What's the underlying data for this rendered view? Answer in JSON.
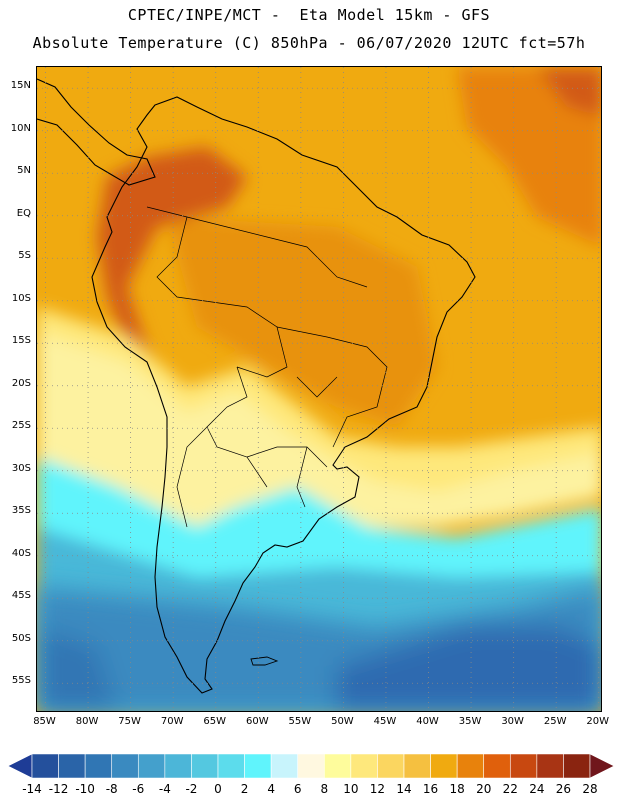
{
  "header": {
    "line1": "CPTEC/INPE/MCT -  Eta Model 15km - GFS",
    "line2": "Absolute Temperature (C) 850hPa - 06/07/2020 12UTC fct=57h"
  },
  "map": {
    "region": "South America",
    "lon_range": [
      -86,
      -19.5
    ],
    "lat_range": [
      17.5,
      -58.5
    ],
    "lat_labels": [
      {
        "lat": 15,
        "text": "15N"
      },
      {
        "lat": 10,
        "text": "10N"
      },
      {
        "lat": 5,
        "text": "5N"
      },
      {
        "lat": 0,
        "text": "EQ"
      },
      {
        "lat": -5,
        "text": "5S"
      },
      {
        "lat": -10,
        "text": "10S"
      },
      {
        "lat": -15,
        "text": "15S"
      },
      {
        "lat": -20,
        "text": "20S"
      },
      {
        "lat": -25,
        "text": "25S"
      },
      {
        "lat": -30,
        "text": "30S"
      },
      {
        "lat": -35,
        "text": "35S"
      },
      {
        "lat": -40,
        "text": "40S"
      },
      {
        "lat": -45,
        "text": "45S"
      },
      {
        "lat": -50,
        "text": "50S"
      },
      {
        "lat": -55,
        "text": "55S"
      }
    ],
    "lon_labels": [
      {
        "lon": -85,
        "text": "85W"
      },
      {
        "lon": -80,
        "text": "80W"
      },
      {
        "lon": -75,
        "text": "75W"
      },
      {
        "lon": -70,
        "text": "70W"
      },
      {
        "lon": -65,
        "text": "65W"
      },
      {
        "lon": -60,
        "text": "60W"
      },
      {
        "lon": -55,
        "text": "55W"
      },
      {
        "lon": -50,
        "text": "50W"
      },
      {
        "lon": -45,
        "text": "45W"
      },
      {
        "lon": -40,
        "text": "40W"
      },
      {
        "lon": -35,
        "text": "35W"
      },
      {
        "lon": -30,
        "text": "30W"
      },
      {
        "lon": -25,
        "text": "25W"
      },
      {
        "lon": -20,
        "text": "20W"
      }
    ],
    "temperature_zones": [
      {
        "name": "warm-north",
        "range_c": "14 to 16",
        "color": "#f0aa10"
      },
      {
        "name": "hot-north-ocean",
        "range_c": "18 to 20",
        "color": "#e8820c"
      },
      {
        "name": "andes-hot",
        "range_c": "20 to 22",
        "color": "#d25a14"
      },
      {
        "name": "subtropical",
        "range_c": "8 to 12",
        "color": "#fdf2a0"
      },
      {
        "name": "cool",
        "range_c": "2 to 4",
        "color": "#5ff8ff"
      },
      {
        "name": "cold-south",
        "range_c": "-4 to -2",
        "color": "#48b8d8"
      },
      {
        "name": "coldest-south",
        "range_c": "-10 to -8",
        "color": "#2e6ab0"
      }
    ]
  },
  "colorbar": {
    "labels": [
      "-14",
      "-12",
      "-10",
      "-8",
      "-6",
      "-4",
      "-2",
      "0",
      "2",
      "4",
      "6",
      "8",
      "10",
      "12",
      "14",
      "16",
      "18",
      "20",
      "22",
      "24",
      "26",
      "28"
    ],
    "colors": [
      "#1e3c96",
      "#24509c",
      "#2a64a8",
      "#3076b4",
      "#3a8ac0",
      "#44a0cc",
      "#4cb6d8",
      "#54c8e0",
      "#5cdcec",
      "#60f4fc",
      "#c8f4fc",
      "#fff8e0",
      "#fefc9c",
      "#fee87c",
      "#fbd660",
      "#f5c040",
      "#f0aa10",
      "#e8820c",
      "#e0600c",
      "#c84810",
      "#a83414",
      "#8a2410",
      "#70161c"
    ]
  }
}
